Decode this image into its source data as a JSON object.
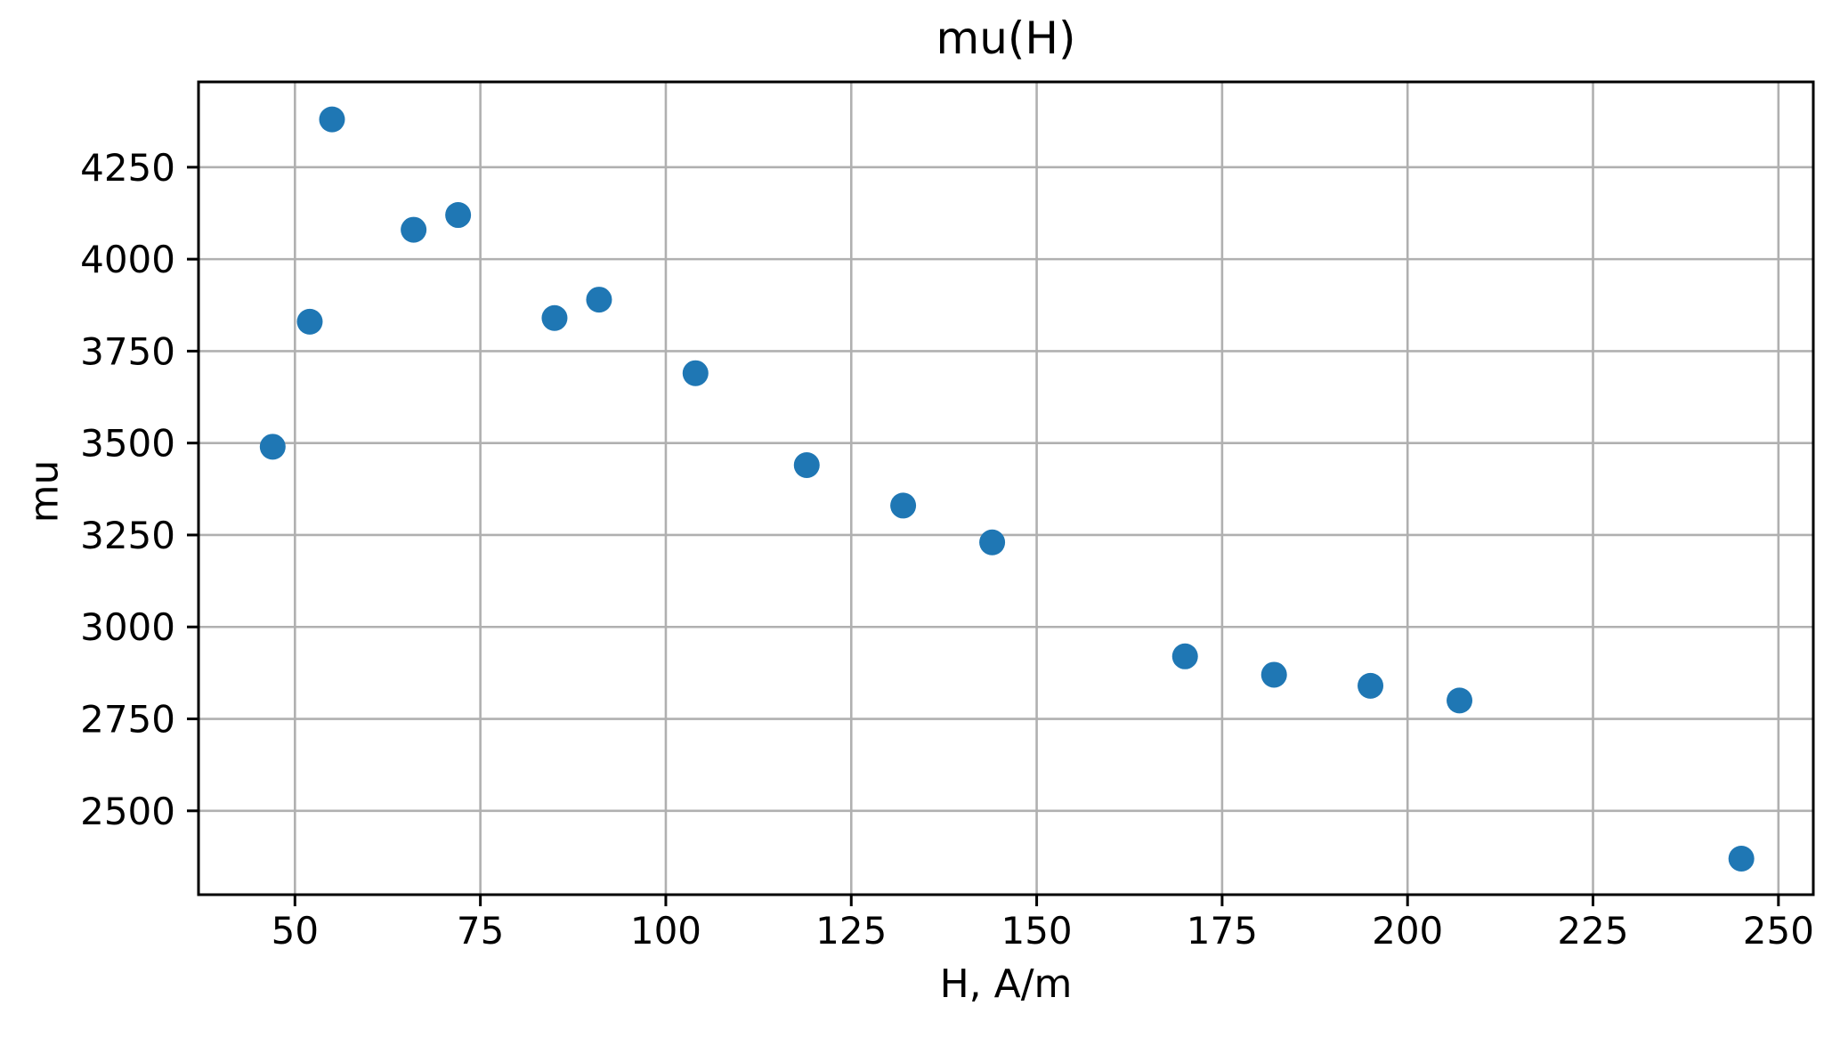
{
  "figure": {
    "background": "#ffffff"
  },
  "chart_data": {
    "type": "scatter",
    "title": "mu(H)",
    "xlabel": "H, A/m",
    "ylabel": "mu",
    "x": [
      47,
      52,
      55,
      66,
      72,
      85,
      91,
      104,
      119,
      132,
      144,
      170,
      182,
      195,
      207,
      245
    ],
    "y": [
      3490,
      3830,
      4380,
      4080,
      4120,
      3840,
      3890,
      3690,
      3440,
      3330,
      3230,
      2920,
      2870,
      2840,
      2800,
      2370
    ],
    "xlim": [
      37.0,
      254.7
    ],
    "ylim": [
      2272,
      4482
    ],
    "xticks": [
      50,
      75,
      100,
      125,
      150,
      175,
      200,
      225,
      250
    ],
    "yticks": [
      2500,
      2750,
      3000,
      3250,
      3500,
      3750,
      4000,
      4250
    ],
    "grid": true,
    "legend_position": "none",
    "marker": {
      "color": "#1f77b4",
      "radius": 14.5
    },
    "colors": {
      "grid": "#b0b0b0",
      "spine": "#000000",
      "tick": "#000000",
      "tick_label": "#000000"
    }
  }
}
